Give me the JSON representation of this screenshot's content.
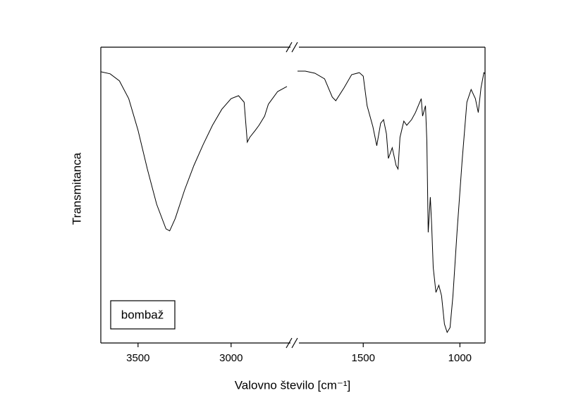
{
  "chart_data": {
    "type": "line",
    "x_label": "Valovno število [cm⁻¹]",
    "y_label": "Transmitanca",
    "annotation": "bombaž",
    "ylim": [
      0,
      100
    ],
    "x_segments": [
      {
        "xlim": [
          3700,
          2700
        ],
        "xticks": [
          3500,
          3000
        ]
      },
      {
        "xlim": [
          1840,
          870
        ],
        "xticks": [
          1500,
          1000
        ]
      }
    ],
    "series": [
      {
        "color": "#000000",
        "x": [
          3700,
          3650,
          3600,
          3550,
          3500,
          3450,
          3400,
          3350,
          3330,
          3300,
          3250,
          3200,
          3150,
          3100,
          3050,
          3000,
          2960,
          2930,
          2913,
          2900,
          2870,
          2850,
          2820,
          2800,
          2750,
          2700
        ],
        "values": [
          91.7,
          91.0,
          88.6,
          82.6,
          71.9,
          58.8,
          46.9,
          38.6,
          37.9,
          42.1,
          51.7,
          60.0,
          67.1,
          73.6,
          79.0,
          82.6,
          83.6,
          81.4,
          67.9,
          69.5,
          71.9,
          73.6,
          76.7,
          80.7,
          85.0,
          86.7
        ]
      },
      {
        "color": "#000000",
        "x": [
          1840,
          1800,
          1750,
          1700,
          1680,
          1660,
          1642,
          1600,
          1560,
          1520,
          1500,
          1480,
          1450,
          1430,
          1410,
          1395,
          1380,
          1370,
          1350,
          1330,
          1320,
          1310,
          1290,
          1275,
          1250,
          1230,
          1200,
          1193,
          1178,
          1171,
          1164,
          1153,
          1146,
          1138,
          1124,
          1109,
          1095,
          1080,
          1066,
          1051,
          1036,
          1015,
          989,
          964,
          942,
          920,
          905,
          891,
          876,
          870
        ],
        "values": [
          91.9,
          91.9,
          91.2,
          89.3,
          86.2,
          83.1,
          81.9,
          86.2,
          90.7,
          91.4,
          90.2,
          80.2,
          73.1,
          66.7,
          74.3,
          75.5,
          70.7,
          62.4,
          66.0,
          60.0,
          58.8,
          69.5,
          75.0,
          73.6,
          75.5,
          77.9,
          82.6,
          76.7,
          80.2,
          68.3,
          37.4,
          49.3,
          39.8,
          25.5,
          17.1,
          19.5,
          16.0,
          6.4,
          3.6,
          5.2,
          16.0,
          37.4,
          61.2,
          81.4,
          85.7,
          82.6,
          77.9,
          86.2,
          91.4,
          91.0
        ]
      }
    ]
  }
}
